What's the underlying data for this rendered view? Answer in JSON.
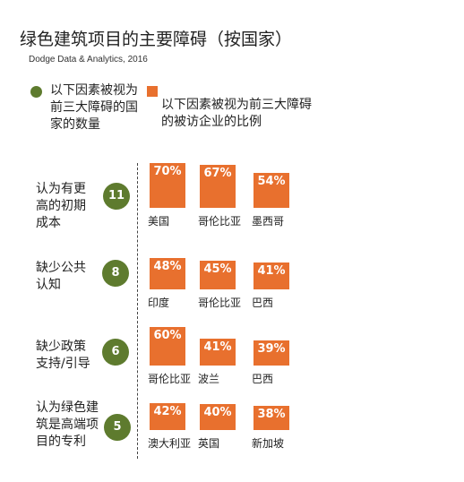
{
  "title": "绿色建筑项目的主要障碍（按国家）",
  "source": "Dodge Data & Analytics, 2016",
  "legend": {
    "count_label": "以下因素被视为前三大障碍的国家的数量",
    "percent_label": "以下因素被视为前三大障碍的被访企业的比例",
    "count_color": "#5e7b2e",
    "percent_color": "#e8702e"
  },
  "chart_data": {
    "type": "bar",
    "title": "绿色建筑项目的主要障碍（按国家）",
    "rows": [
      {
        "barrier": "认为有更高的初期成本",
        "count": "11",
        "bars": [
          {
            "country": "美国",
            "value": 70,
            "label": "70%"
          },
          {
            "country": "哥伦比亚",
            "value": 67,
            "label": "67%"
          },
          {
            "country": "墨西哥",
            "value": 54,
            "label": "54%"
          }
        ]
      },
      {
        "barrier": "缺少公共认知",
        "count": "8",
        "bars": [
          {
            "country": "印度",
            "value": 48,
            "label": "48%"
          },
          {
            "country": "哥伦比亚",
            "value": 45,
            "label": "45%"
          },
          {
            "country": "巴西",
            "value": 41,
            "label": "41%"
          }
        ]
      },
      {
        "barrier": "缺少政策支持/引导",
        "count": "6",
        "bars": [
          {
            "country": "哥伦比亚",
            "value": 60,
            "label": "60%"
          },
          {
            "country": "波兰",
            "value": 41,
            "label": "41%"
          },
          {
            "country": "巴西",
            "value": 39,
            "label": "39%"
          }
        ]
      },
      {
        "barrier": "认为绿色建筑是高端项目的专利",
        "count": "5",
        "bars": [
          {
            "country": "澳大利亚",
            "value": 42,
            "label": "42%"
          },
          {
            "country": "英国",
            "value": 40,
            "label": "40%"
          },
          {
            "country": "新加坡",
            "value": 38,
            "label": "38%"
          }
        ]
      }
    ]
  }
}
